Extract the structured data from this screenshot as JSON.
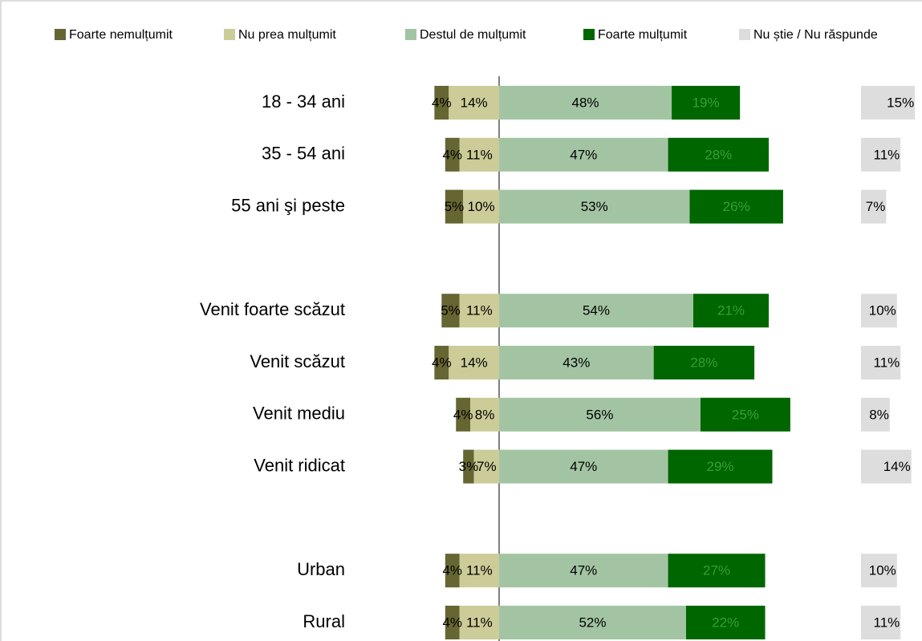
{
  "chart_data": {
    "type": "bar",
    "categories": [
      "18 - 34 ani",
      "35 - 54 ani",
      "55 ani şi peste",
      null,
      "Venit foarte scăzut",
      "Venit scăzut",
      "Venit mediu",
      "Venit ridicat",
      null,
      "Urban",
      "Rural"
    ],
    "series": [
      {
        "name": "Foarte nemulțumit",
        "color": "#666633",
        "values": [
          4,
          4,
          5,
          null,
          5,
          4,
          4,
          3,
          null,
          4,
          4
        ],
        "value_labels": [
          "4%",
          "4%",
          "5%",
          null,
          "5%",
          "4%",
          "4%",
          "3%",
          null,
          "4%",
          "4%"
        ]
      },
      {
        "name": "Nu prea mulțumit",
        "color": "#cccc99",
        "values": [
          14,
          11,
          10,
          null,
          11,
          14,
          8,
          7,
          null,
          11,
          11
        ],
        "value_labels": [
          "14%",
          "11%",
          "10%",
          null,
          "11%",
          "14%",
          "8%",
          "7%",
          null,
          "11%",
          "11%"
        ]
      },
      {
        "name": "Destul de mulțumit",
        "color": "#a3c4a3",
        "values": [
          48,
          47,
          53,
          null,
          54,
          43,
          56,
          47,
          null,
          47,
          52
        ],
        "value_labels": [
          "48%",
          "47%",
          "53%",
          null,
          "54%",
          "43%",
          "56%",
          "47%",
          null,
          "47%",
          "52%"
        ]
      },
      {
        "name": "Foarte mulțumit",
        "color": "#006600",
        "values": [
          19,
          28,
          26,
          null,
          21,
          28,
          25,
          29,
          null,
          27,
          22
        ],
        "value_labels": [
          "19%",
          "28%",
          "26%",
          null,
          "21%",
          "28%",
          "25%",
          "29%",
          null,
          "27%",
          "22%"
        ]
      },
      {
        "name": "Nu știe / Nu răspunde",
        "color": "#dddddd",
        "values": [
          15,
          11,
          7,
          null,
          10,
          11,
          8,
          14,
          null,
          10,
          11
        ],
        "value_labels": [
          "15%",
          "11%",
          "7%",
          null,
          "10%",
          "11%",
          "8%",
          "14%",
          null,
          "10%",
          "11%"
        ]
      }
    ]
  }
}
